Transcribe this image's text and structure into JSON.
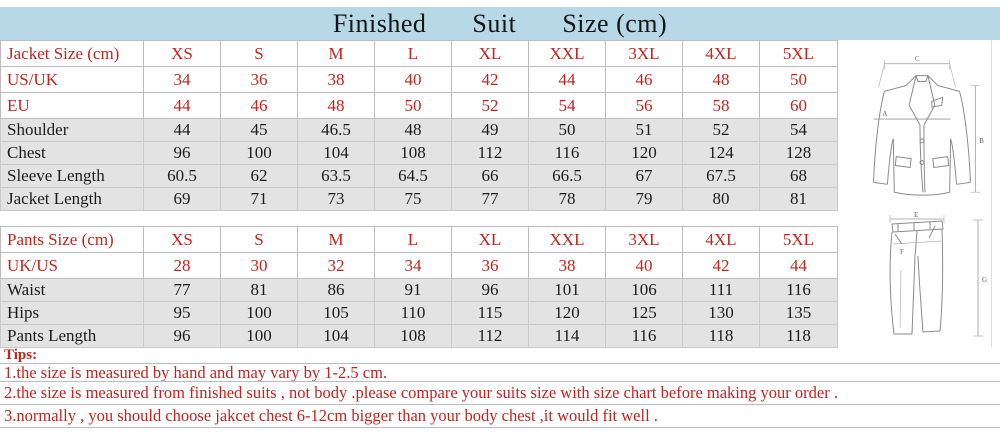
{
  "header": {
    "title_words": [
      "Finished",
      "Suit",
      "Size (cm)"
    ]
  },
  "jacket": {
    "rows": [
      {
        "label": "Jacket Size (cm)",
        "style": "red",
        "values": [
          "XS",
          "S",
          "M",
          "L",
          "XL",
          "XXL",
          "3XL",
          "4XL",
          "5XL"
        ]
      },
      {
        "label": "US/UK",
        "style": "red",
        "values": [
          "34",
          "36",
          "38",
          "40",
          "42",
          "44",
          "46",
          "48",
          "50"
        ]
      },
      {
        "label": "EU",
        "style": "red",
        "values": [
          "44",
          "46",
          "48",
          "50",
          "52",
          "54",
          "56",
          "58",
          "60"
        ]
      },
      {
        "label": "Shoulder",
        "style": "plain",
        "values": [
          "44",
          "45",
          "46.5",
          "48",
          "49",
          "50",
          "51",
          "52",
          "54"
        ]
      },
      {
        "label": "Chest",
        "style": "plain",
        "values": [
          "96",
          "100",
          "104",
          "108",
          "112",
          "116",
          "120",
          "124",
          "128"
        ]
      },
      {
        "label": "Sleeve Length",
        "style": "plain",
        "values": [
          "60.5",
          "62",
          "63.5",
          "64.5",
          "66",
          "66.5",
          "67",
          "67.5",
          "68"
        ]
      },
      {
        "label": "Jacket Length",
        "style": "plain",
        "values": [
          "69",
          "71",
          "73",
          "75",
          "77",
          "78",
          "79",
          "80",
          "81"
        ]
      }
    ]
  },
  "pants": {
    "rows": [
      {
        "label": "Pants Size (cm)",
        "style": "red",
        "values": [
          "XS",
          "S",
          "M",
          "L",
          "XL",
          "XXL",
          "3XL",
          "4XL",
          "5XL"
        ]
      },
      {
        "label": "UK/US",
        "style": "red",
        "values": [
          "28",
          "30",
          "32",
          "34",
          "36",
          "38",
          "40",
          "42",
          "44"
        ]
      },
      {
        "label": "Waist",
        "style": "plain",
        "values": [
          "77",
          "81",
          "86",
          "91",
          "96",
          "101",
          "106",
          "111",
          "116"
        ]
      },
      {
        "label": "Hips",
        "style": "plain",
        "values": [
          "95",
          "100",
          "105",
          "110",
          "115",
          "120",
          "125",
          "130",
          "135"
        ]
      },
      {
        "label": "Pants Length",
        "style": "plain",
        "values": [
          "96",
          "100",
          "104",
          "108",
          "112",
          "114",
          "116",
          "118",
          "118"
        ]
      }
    ]
  },
  "tips": {
    "heading": "Tips:",
    "items": [
      "1.the size is measured by hand and may vary by 1-2.5 cm.",
      "2.the size is measured from finished suits , not body .please compare your suits size with size chart before making your order .",
      "3.normally , you should choose jakcet chest 6-12cm bigger than your body chest ,it would fit well ."
    ]
  },
  "diagram": {
    "jacket_labels": {
      "shoulder": "C",
      "chest": "A",
      "length": "B"
    },
    "pants_labels": {
      "waist": "E",
      "hips": "F",
      "length": "G"
    }
  },
  "colors": {
    "accent_red": "#c5231d",
    "header_blue": "#b7d9e7",
    "row_gray": "#e3e3e3"
  }
}
